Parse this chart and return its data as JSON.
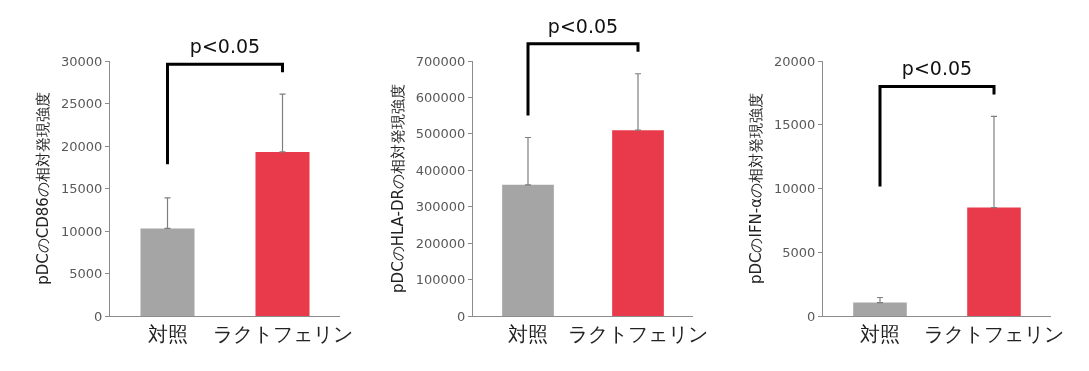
{
  "chart_data": [
    {
      "type": "bar",
      "ylabel": "pDCのCD86の相対発現強度",
      "categories": [
        "対照",
        "ラクトフェリン"
      ],
      "values": [
        10300,
        19300
      ],
      "colors": [
        "#a5a5a5",
        "#e83a4a"
      ],
      "errors": [
        [
          10300,
          13900
        ],
        [
          19300,
          26100
        ]
      ],
      "ylim": [
        0,
        30000
      ],
      "yticks": [
        0,
        5000,
        10000,
        15000,
        20000,
        25000,
        30000
      ],
      "annotations": [
        "p<0.05"
      ]
    },
    {
      "type": "bar",
      "ylabel": "pDCのHLA-DRの相対発現強度",
      "categories": [
        "対照",
        "ラクトフェリン"
      ],
      "values": [
        360000,
        510000
      ],
      "colors": [
        "#a5a5a5",
        "#e83a4a"
      ],
      "errors": [
        [
          360000,
          490000
        ],
        [
          510000,
          665000
        ]
      ],
      "ylim": [
        0,
        700000
      ],
      "yticks": [
        0,
        100000,
        200000,
        300000,
        400000,
        500000,
        600000,
        700000
      ],
      "annotations": [
        "p<0.05"
      ]
    },
    {
      "type": "bar",
      "ylabel": "pDCのIFN-αの相対発現強度",
      "categories": [
        "対照",
        "ラクトフェリン"
      ],
      "values": [
        1050,
        8500
      ],
      "colors": [
        "#a5a5a5",
        "#e83a4a"
      ],
      "errors": [
        [
          1050,
          1450
        ],
        [
          8500,
          15650
        ]
      ],
      "ylim": [
        0,
        20000
      ],
      "yticks": [
        0,
        5000,
        10000,
        15000,
        20000
      ],
      "annotations": [
        "p<0.05"
      ]
    }
  ]
}
